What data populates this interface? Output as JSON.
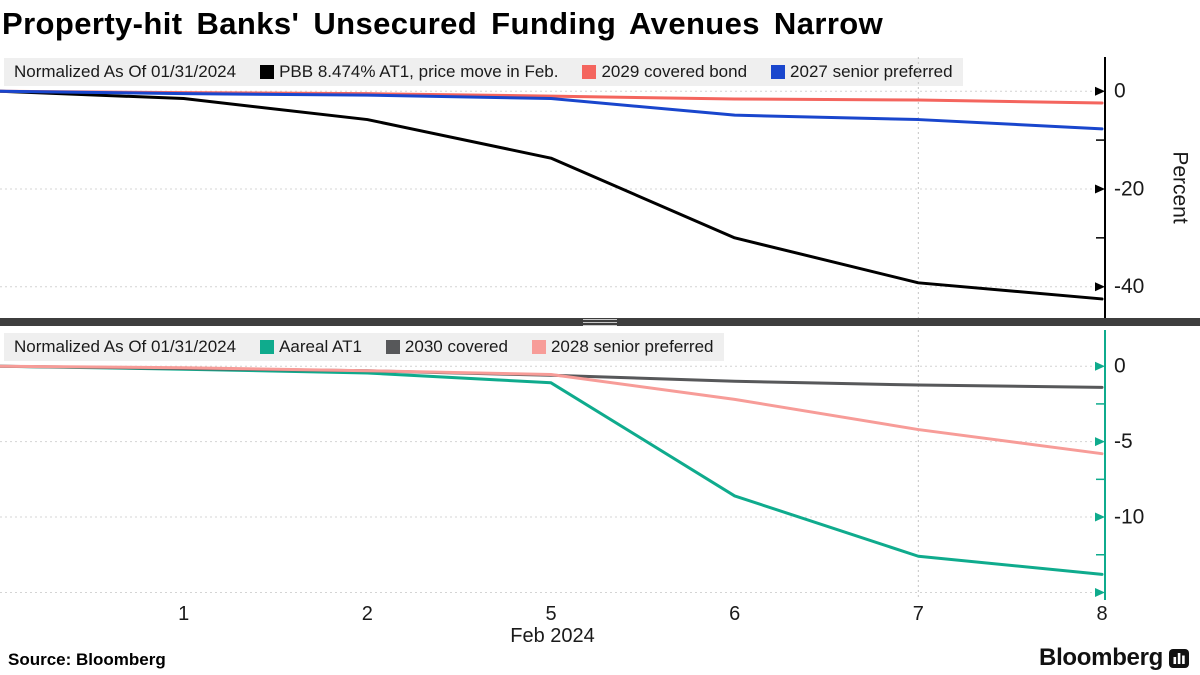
{
  "title": "Property-hit Banks' Unsecured Funding Avenues Narrow",
  "footer": {
    "source": "Source:  Bloomberg",
    "brand": "Bloomberg"
  },
  "crosshair": {
    "index": 5,
    "date": "02/07/2024"
  },
  "xaxis": {
    "title": "Feb 2024",
    "ticks": [
      {
        "index": 1,
        "label": "1"
      },
      {
        "index": 2,
        "label": "2"
      },
      {
        "index": 3,
        "label": "5"
      },
      {
        "index": 4,
        "label": "6"
      },
      {
        "index": 5,
        "label": "7"
      },
      {
        "index": 6,
        "label": "8"
      }
    ]
  },
  "chart_data": [
    {
      "panel": "top",
      "type": "line",
      "normalized_label": "Normalized As Of 01/31/2024",
      "ylabel": "Percent",
      "axis_color": "#000000",
      "grid": true,
      "legend_position": "top-left",
      "x": [
        "01/31/2024",
        "02/01/2024",
        "02/02/2024",
        "02/05/2024",
        "02/06/2024",
        "02/07/2024",
        "02/08/2024"
      ],
      "ylim": [
        7,
        -46.4
      ],
      "yticks": [
        {
          "value": 0,
          "label": "0"
        },
        {
          "value": -20,
          "label": "-20"
        },
        {
          "value": -40,
          "label": "-40"
        }
      ],
      "yticks_minor": [
        -10,
        -30
      ],
      "series": [
        {
          "id": "pbb-at1",
          "name": "PBB 8.474% AT1, price move in Feb.",
          "color": "#000000",
          "values": [
            0,
            -1.5,
            -5.8,
            -13.7,
            -30.0,
            -39.2,
            -42.5
          ]
        },
        {
          "id": "2029-covered-bond",
          "name": "2029 covered bond",
          "color": "#f4655e",
          "values": [
            0,
            -0.3,
            -0.5,
            -1.0,
            -1.6,
            -1.8,
            -2.4
          ]
        },
        {
          "id": "2027-senior-preferred",
          "name": "2027 senior preferred",
          "color": "#1946cd",
          "values": [
            0,
            -0.5,
            -0.8,
            -1.5,
            -4.9,
            -5.8,
            -7.7
          ]
        }
      ]
    },
    {
      "panel": "bottom",
      "type": "line",
      "normalized_label": "Normalized As Of 01/31/2024",
      "ylabel": "",
      "axis_color": "#0fab8d",
      "grid": true,
      "legend_position": "top-left",
      "x": [
        "01/31/2024",
        "02/01/2024",
        "02/02/2024",
        "02/05/2024",
        "02/06/2024",
        "02/07/2024",
        "02/08/2024"
      ],
      "ylim": [
        2.4,
        -15.5
      ],
      "yticks": [
        {
          "value": 0,
          "label": "0"
        },
        {
          "value": -5,
          "label": "-5"
        },
        {
          "value": -10,
          "label": "-10"
        },
        {
          "value": -15,
          "label": ""
        }
      ],
      "yticks_minor": [
        -2.5,
        -7.5,
        -12.5
      ],
      "series": [
        {
          "id": "aareal-at1",
          "name": "Aareal AT1",
          "color": "#0fab8d",
          "values": [
            0,
            -0.2,
            -0.45,
            -1.1,
            -8.6,
            -12.6,
            -13.8
          ]
        },
        {
          "id": "2030-covered",
          "name": "2030 covered",
          "color": "#57585a",
          "values": [
            0,
            -0.15,
            -0.3,
            -0.6,
            -1.0,
            -1.25,
            -1.4
          ]
        },
        {
          "id": "2028-senior-preferred",
          "name": "2028 senior preferred",
          "color": "#f79c98",
          "values": [
            0,
            -0.1,
            -0.3,
            -0.55,
            -2.2,
            -4.2,
            -5.8
          ]
        }
      ]
    }
  ],
  "style_colors": {
    "grid": "#d4d4d4",
    "crosshair": "#c4c4c4",
    "legend_bg": "#efefef",
    "divider": "#3e3e3e"
  }
}
